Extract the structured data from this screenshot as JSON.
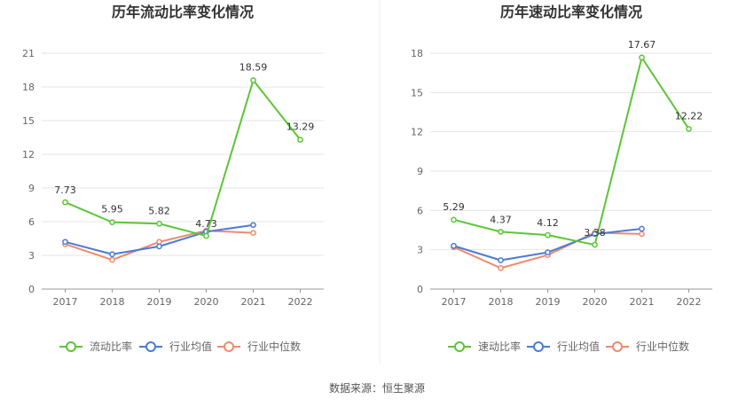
{
  "source": "数据来源：恒生聚源",
  "colors": {
    "primary": "#5cc535",
    "avg": "#4a7bd6",
    "median": "#f08a6c",
    "grid": "#e6e6e6",
    "axis": "#999999"
  },
  "chart_data": [
    {
      "type": "line",
      "title": "历年流动比率变化情况",
      "categories": [
        "2017",
        "2018",
        "2019",
        "2020",
        "2021",
        "2022"
      ],
      "yticks": [
        "0",
        "3",
        "6",
        "9",
        "12",
        "15",
        "18",
        "21"
      ],
      "ylim": [
        0,
        21
      ],
      "grid": true,
      "legend": "bottom",
      "series": [
        {
          "name": "流动比率",
          "values": [
            7.73,
            5.95,
            5.82,
            4.73,
            18.59,
            13.29
          ],
          "labels": [
            "7.73",
            "5.95",
            "5.82",
            "4.73",
            "18.59",
            "13.29"
          ]
        },
        {
          "name": "行业均值",
          "values": [
            4.2,
            3.1,
            3.8,
            5.1,
            5.7,
            null
          ]
        },
        {
          "name": "行业中位数",
          "values": [
            4.0,
            2.6,
            4.2,
            5.2,
            5.0,
            null
          ]
        }
      ]
    },
    {
      "type": "line",
      "title": "历年速动比率变化情况",
      "categories": [
        "2017",
        "2018",
        "2019",
        "2020",
        "2021",
        "2022"
      ],
      "yticks": [
        "0",
        "3",
        "6",
        "9",
        "12",
        "15",
        "18"
      ],
      "ylim": [
        0,
        18
      ],
      "grid": true,
      "legend": "bottom",
      "series": [
        {
          "name": "速动比率",
          "values": [
            5.29,
            4.37,
            4.12,
            3.38,
            17.67,
            12.22
          ],
          "labels": [
            "5.29",
            "4.37",
            "4.12",
            "3.38",
            "17.67",
            "12.22"
          ]
        },
        {
          "name": "行业均值",
          "values": [
            3.3,
            2.2,
            2.8,
            4.2,
            4.6,
            null
          ]
        },
        {
          "name": "行业中位数",
          "values": [
            3.2,
            1.6,
            2.6,
            4.3,
            4.2,
            null
          ]
        }
      ]
    }
  ]
}
